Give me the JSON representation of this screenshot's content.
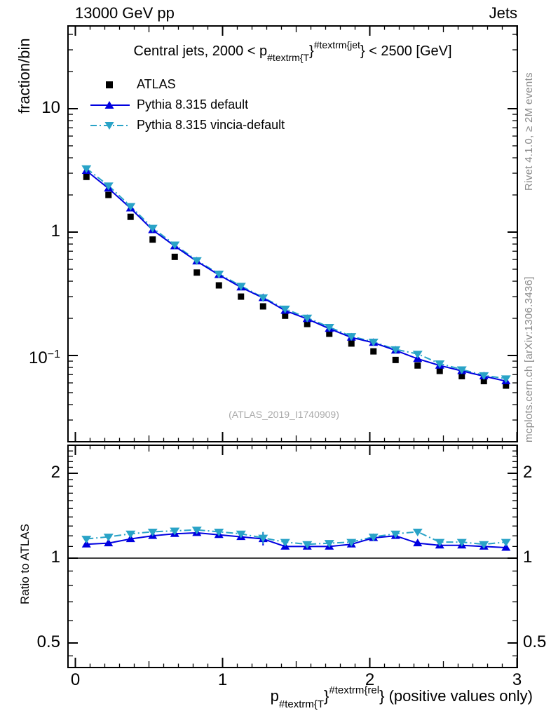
{
  "header": {
    "left": "13000 GeV pp",
    "right": "Jets"
  },
  "title": {
    "prefix": "Central jets, 2000 < p",
    "sub": "#textrm{T",
    "brace1": "}",
    "sup": "#textrm{jet",
    "suffix": "} < 2500 [GeV]"
  },
  "legend": {
    "items": [
      {
        "label": "ATLAS",
        "marker": "square",
        "color_key": "atlas"
      },
      {
        "label": "Pythia 8.315 default",
        "marker": "triangle-up",
        "color_key": "pythia_default"
      },
      {
        "label": "Pythia 8.315 vincia-default",
        "marker": "triangle-down",
        "color_key": "pythia_vincia"
      }
    ]
  },
  "watermark": "(ATLAS_2019_I1740909)",
  "notes": {
    "rivet": "Rivet 4.1.0, ≥ 2M events",
    "mcplots": "mcplots.cern.ch [arXiv:1306.3436]"
  },
  "axis_titles": {
    "main_y": "fraction/bin",
    "ratio_y": "Ratio to ATLAS"
  },
  "x_title": {
    "prefix": "p",
    "sub": "#textrm{T",
    "brace1": "}",
    "sup": "#textrm{rel",
    "suffix": "} (positive values only)"
  },
  "axes": {
    "x_ticks": [
      {
        "v": 0,
        "text": "0"
      },
      {
        "v": 1,
        "text": "1"
      },
      {
        "v": 2,
        "text": "2"
      },
      {
        "v": 3,
        "text": "3"
      }
    ],
    "main_y_ticks": [
      {
        "v": 10,
        "text": "10",
        "exp": ""
      },
      {
        "v": 1,
        "text": "1",
        "exp": ""
      },
      {
        "v": 0.1,
        "text": "10",
        "exp": "−1"
      }
    ],
    "ratio_y_ticks": [
      {
        "v": 2,
        "text": "2"
      },
      {
        "v": 1,
        "text": "1"
      },
      {
        "v": 0.5,
        "text": "0.5"
      }
    ]
  },
  "colors": {
    "atlas": "#000000",
    "pythia_default": "#0000e0",
    "pythia_vincia": "#29a3c7",
    "frame": "#000000",
    "note_gray": "#8a8a8a",
    "watermark_gray": "#aaaaaa"
  },
  "chart_data": [
    {
      "type": "line",
      "panel": "main",
      "title": "Central jets, 2000 < pT(jet) < 2500 [GeV]",
      "ylabel": "fraction/bin",
      "yscale": "log",
      "ylim": [
        0.0206,
        46.8
      ],
      "xlim": [
        -0.05,
        3.0
      ],
      "grid": false,
      "legend_position": "top-left",
      "x": [
        0.075,
        0.225,
        0.375,
        0.525,
        0.675,
        0.825,
        0.975,
        1.125,
        1.275,
        1.425,
        1.575,
        1.725,
        1.875,
        2.025,
        2.175,
        2.325,
        2.475,
        2.625,
        2.775,
        2.925
      ],
      "series": [
        {
          "name": "ATLAS",
          "marker": "square",
          "line": "none",
          "color_key": "atlas",
          "values": [
            2.8,
            2.0,
            1.33,
            0.87,
            0.63,
            0.47,
            0.37,
            0.3,
            0.25,
            0.21,
            0.18,
            0.15,
            0.125,
            0.108,
            0.092,
            0.083,
            0.075,
            0.068,
            0.062,
            0.057
          ]
        },
        {
          "name": "Pythia 8.315 default",
          "marker": "triangle-up",
          "line": "solid",
          "color_key": "pythia_default",
          "values": [
            3.14,
            2.26,
            1.56,
            1.04,
            0.77,
            0.58,
            0.45,
            0.357,
            0.293,
            0.231,
            0.198,
            0.165,
            0.14,
            0.127,
            0.11,
            0.094,
            0.083,
            0.075,
            0.068,
            0.062
          ]
        },
        {
          "name": "Pythia 8.315 vincia-default",
          "marker": "triangle-down",
          "line": "dashdot",
          "color_key": "pythia_vincia",
          "values": [
            3.28,
            2.38,
            1.62,
            1.08,
            0.79,
            0.59,
            0.459,
            0.366,
            0.295,
            0.239,
            0.202,
            0.17,
            0.143,
            0.129,
            0.112,
            0.103,
            0.086,
            0.077,
            0.069,
            0.065
          ]
        }
      ]
    },
    {
      "type": "line",
      "panel": "ratio",
      "ylabel": "Ratio to ATLAS",
      "yscale": "log",
      "ylim": [
        0.41,
        2.51
      ],
      "xlim": [
        -0.05,
        3.0
      ],
      "baseline": 1,
      "x": [
        0.075,
        0.225,
        0.375,
        0.525,
        0.675,
        0.825,
        0.975,
        1.125,
        1.275,
        1.425,
        1.575,
        1.725,
        1.875,
        2.025,
        2.175,
        2.325,
        2.475,
        2.625,
        2.775,
        2.925
      ],
      "series": [
        {
          "name": "Pythia 8.315 default",
          "marker": "triangle-up",
          "line": "solid",
          "color_key": "pythia_default",
          "values": [
            1.12,
            1.13,
            1.17,
            1.2,
            1.22,
            1.23,
            1.21,
            1.19,
            1.17,
            1.1,
            1.1,
            1.1,
            1.12,
            1.18,
            1.2,
            1.13,
            1.11,
            1.11,
            1.1,
            1.09
          ],
          "error_bars": [
            {
              "index": 8,
              "frac": 0.055
            }
          ]
        },
        {
          "name": "Pythia 8.315 vincia-default",
          "marker": "triangle-down",
          "line": "dashdot",
          "color_key": "pythia_vincia",
          "values": [
            1.17,
            1.19,
            1.22,
            1.24,
            1.25,
            1.26,
            1.24,
            1.22,
            1.18,
            1.14,
            1.12,
            1.13,
            1.14,
            1.19,
            1.22,
            1.24,
            1.14,
            1.14,
            1.12,
            1.14
          ],
          "error_bars": [
            {
              "index": 8,
              "frac": 0.05
            }
          ]
        }
      ]
    }
  ]
}
